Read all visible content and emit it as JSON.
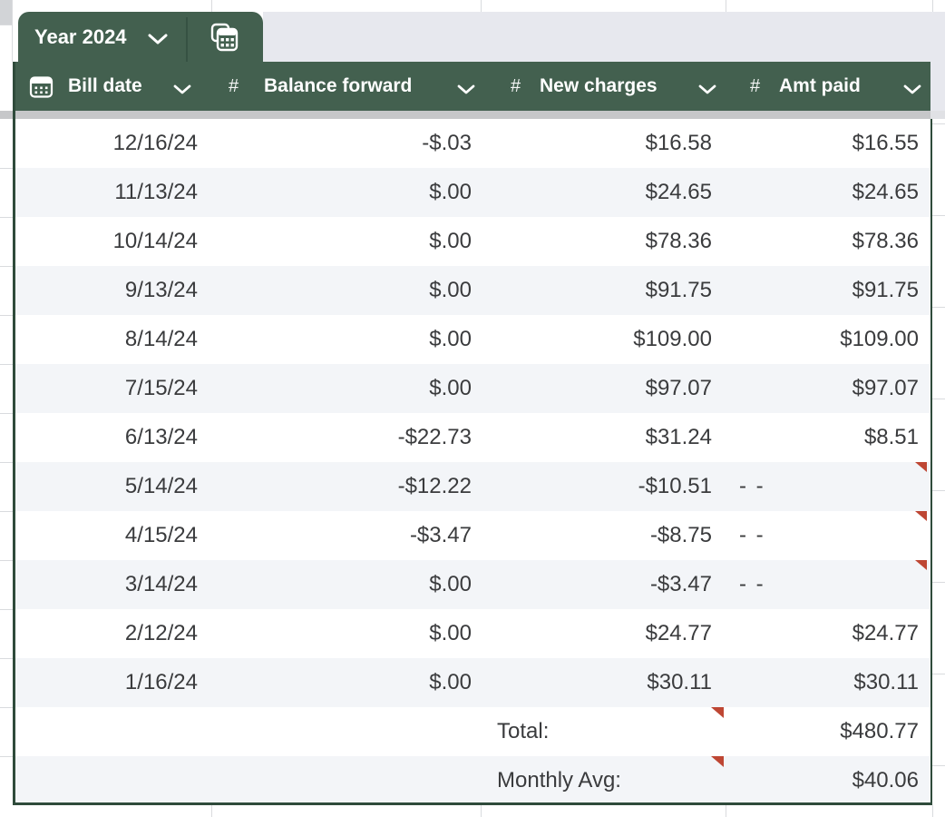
{
  "app": {
    "kind": "spreadsheet"
  },
  "tab": {
    "label": "Year 2024",
    "icons": {
      "dropdown": "chevron-down-icon",
      "sheet": "table-grid-icon"
    }
  },
  "table": {
    "columns": [
      {
        "label": "Bill date",
        "badge": "",
        "icon": "calendar-icon"
      },
      {
        "label": "Balance forward",
        "badge": "#"
      },
      {
        "label": "New charges",
        "badge": "#"
      },
      {
        "label": "Amt paid",
        "badge": "#"
      }
    ],
    "rows": [
      {
        "date": "12/16/24",
        "balance": "-$.03",
        "charges": "$16.58",
        "paid": "$16.55",
        "flag": false
      },
      {
        "date": "11/13/24",
        "balance": "$.00",
        "charges": "$24.65",
        "paid": "$24.65",
        "flag": false
      },
      {
        "date": "10/14/24",
        "balance": "$.00",
        "charges": "$78.36",
        "paid": "$78.36",
        "flag": false
      },
      {
        "date": "9/13/24",
        "balance": "$.00",
        "charges": "$91.75",
        "paid": "$91.75",
        "flag": false
      },
      {
        "date": "8/14/24",
        "balance": "$.00",
        "charges": "$109.00",
        "paid": "$109.00",
        "flag": false
      },
      {
        "date": "7/15/24",
        "balance": "$.00",
        "charges": "$97.07",
        "paid": "$97.07",
        "flag": false
      },
      {
        "date": "6/13/24",
        "balance": "-$22.73",
        "charges": "$31.24",
        "paid": "$8.51",
        "flag": false
      },
      {
        "date": "5/14/24",
        "balance": "-$12.22",
        "charges": "-$10.51",
        "paid": "- -",
        "flag": true
      },
      {
        "date": "4/15/24",
        "balance": "-$3.47",
        "charges": "-$8.75",
        "paid": "- -",
        "flag": true
      },
      {
        "date": "3/14/24",
        "balance": "$.00",
        "charges": "-$3.47",
        "paid": "- -",
        "flag": true
      },
      {
        "date": "2/12/24",
        "balance": "$.00",
        "charges": "$24.77",
        "paid": "$24.77",
        "flag": false
      },
      {
        "date": "1/16/24",
        "balance": "$.00",
        "charges": "$30.11",
        "paid": "$30.11",
        "flag": false
      }
    ],
    "summary": [
      {
        "label": "Total:",
        "value": "$480.77",
        "flag": true
      },
      {
        "label": "Monthly Avg:",
        "value": "$40.06",
        "flag": true
      }
    ]
  },
  "colors": {
    "accent_green": "#43604f",
    "border_green": "#2f4b3b",
    "row_stripe": "#f3f5f8",
    "comment_flag_red": "#be4633",
    "tabbar_gray": "#e7e8ee",
    "band_gray": "#c6c7c9",
    "text": "#3a3b3d"
  }
}
